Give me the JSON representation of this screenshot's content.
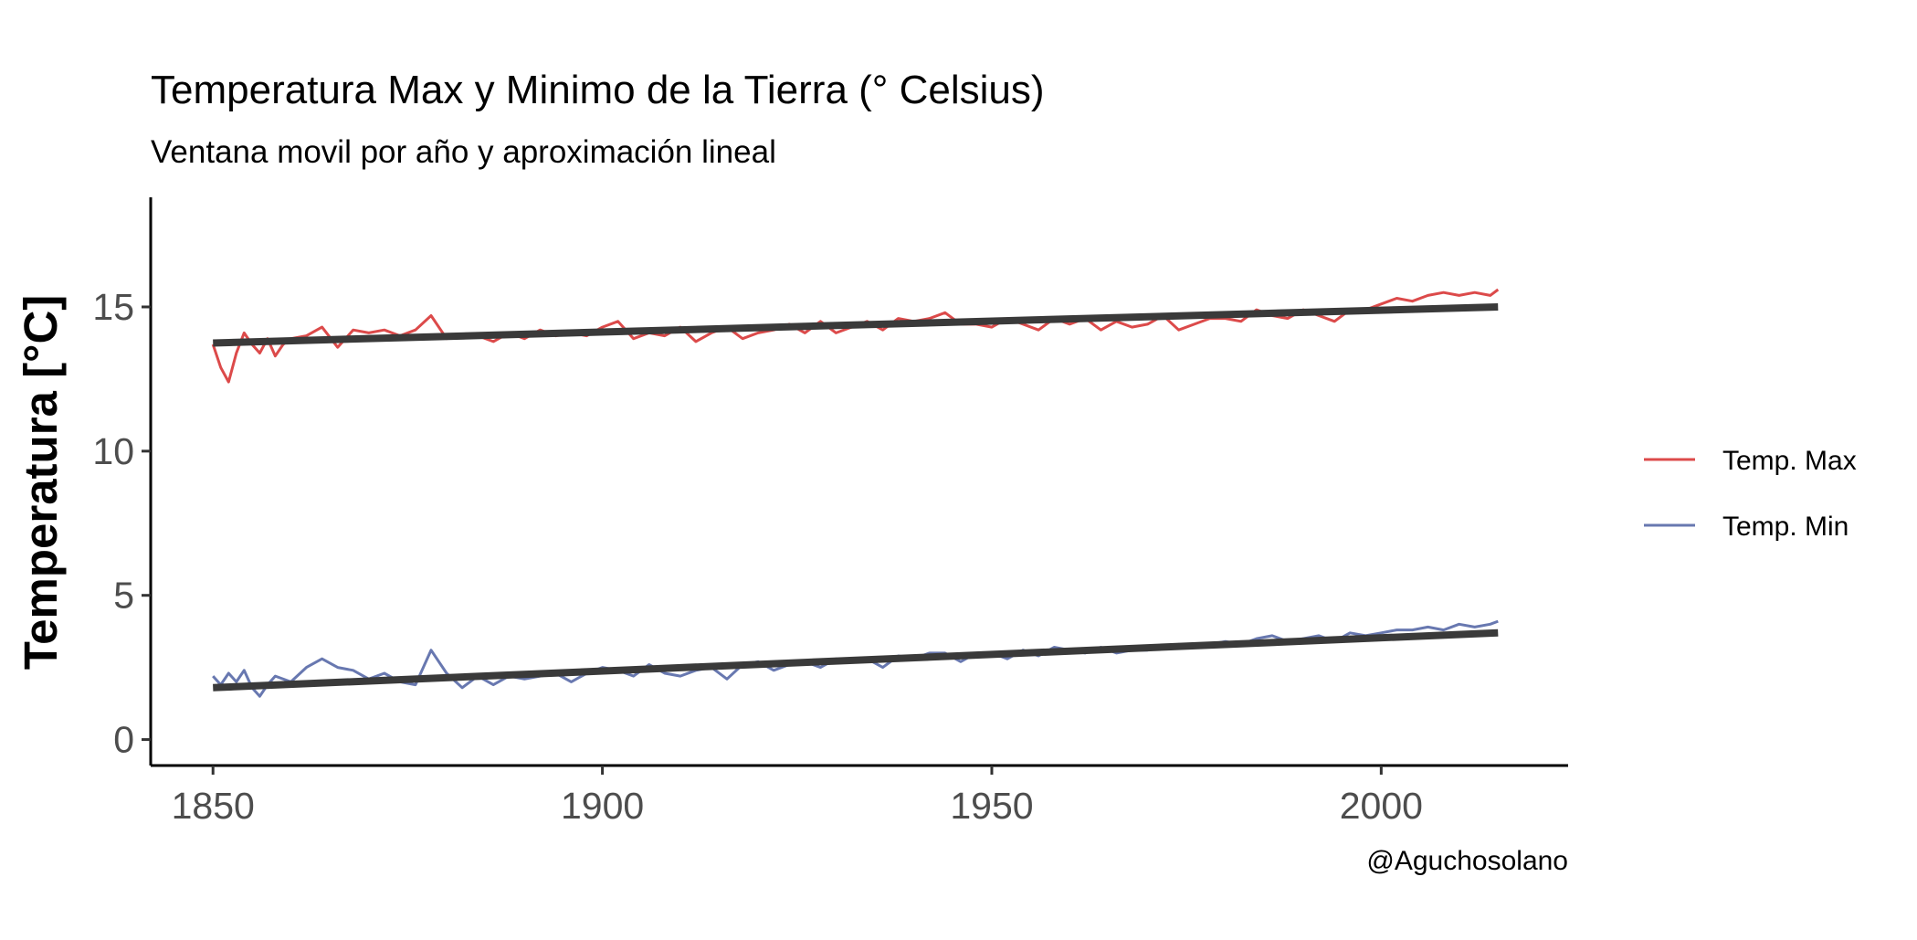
{
  "chart_data": {
    "type": "line",
    "title": "Temperatura Max y Minimo de la Tierra (° Celsius)",
    "subtitle": "Ventana movil por año y aproximación lineal",
    "xlabel": "",
    "ylabel": "Temperatura [°C]",
    "caption": "@Aguchosolano",
    "xlim": [
      1842,
      2024
    ],
    "ylim": [
      -0.9,
      18.8
    ],
    "xticks": [
      "1850",
      "1900",
      "1950",
      "2000"
    ],
    "yticks": [
      "0",
      "5",
      "10",
      "15"
    ],
    "grid": false,
    "legend_position": "right",
    "colors": {
      "max": "#dc4a4a",
      "min": "#6878b0",
      "trend": "#3a3a3a"
    },
    "series": [
      {
        "name": "Temp. Max",
        "color": "#dc4a4a",
        "x": [
          1850,
          1851,
          1852,
          1853,
          1854,
          1855,
          1856,
          1857,
          1858,
          1859,
          1860,
          1862,
          1864,
          1866,
          1868,
          1870,
          1872,
          1874,
          1876,
          1878,
          1880,
          1882,
          1884,
          1886,
          1888,
          1890,
          1892,
          1894,
          1896,
          1898,
          1900,
          1902,
          1904,
          1906,
          1908,
          1910,
          1912,
          1914,
          1916,
          1918,
          1920,
          1922,
          1924,
          1926,
          1928,
          1930,
          1932,
          1934,
          1936,
          1938,
          1940,
          1942,
          1944,
          1946,
          1948,
          1950,
          1952,
          1954,
          1956,
          1958,
          1960,
          1962,
          1964,
          1966,
          1968,
          1970,
          1972,
          1974,
          1976,
          1978,
          1980,
          1982,
          1984,
          1986,
          1988,
          1990,
          1992,
          1994,
          1996,
          1998,
          2000,
          2002,
          2004,
          2006,
          2008,
          2010,
          2012,
          2014,
          2015
        ],
        "values": [
          13.7,
          12.9,
          12.4,
          13.4,
          14.1,
          13.7,
          13.4,
          13.9,
          13.3,
          13.7,
          13.9,
          14.0,
          14.3,
          13.6,
          14.2,
          14.1,
          14.2,
          14.0,
          14.2,
          14.7,
          13.9,
          14.0,
          14.0,
          13.8,
          14.1,
          13.9,
          14.2,
          14.0,
          14.1,
          14.0,
          14.3,
          14.5,
          13.9,
          14.1,
          14.0,
          14.3,
          13.8,
          14.1,
          14.3,
          13.9,
          14.1,
          14.2,
          14.4,
          14.1,
          14.5,
          14.1,
          14.3,
          14.5,
          14.2,
          14.6,
          14.5,
          14.6,
          14.8,
          14.4,
          14.4,
          14.3,
          14.6,
          14.4,
          14.2,
          14.6,
          14.4,
          14.6,
          14.2,
          14.5,
          14.3,
          14.4,
          14.7,
          14.2,
          14.4,
          14.6,
          14.6,
          14.5,
          14.9,
          14.7,
          14.6,
          14.9,
          14.7,
          14.5,
          14.9,
          14.9,
          15.1,
          15.3,
          15.2,
          15.4,
          15.5,
          15.4,
          15.5,
          15.4,
          15.6
        ]
      },
      {
        "name": "Temp. Min",
        "color": "#6878b0",
        "x": [
          1850,
          1851,
          1852,
          1853,
          1854,
          1855,
          1856,
          1857,
          1858,
          1860,
          1862,
          1864,
          1866,
          1868,
          1870,
          1872,
          1874,
          1876,
          1878,
          1880,
          1882,
          1884,
          1886,
          1888,
          1890,
          1892,
          1894,
          1896,
          1898,
          1900,
          1902,
          1904,
          1906,
          1908,
          1910,
          1912,
          1914,
          1916,
          1918,
          1920,
          1922,
          1924,
          1926,
          1928,
          1930,
          1932,
          1934,
          1936,
          1938,
          1940,
          1942,
          1944,
          1946,
          1948,
          1950,
          1952,
          1954,
          1956,
          1958,
          1960,
          1962,
          1964,
          1966,
          1968,
          1970,
          1972,
          1974,
          1976,
          1978,
          1980,
          1982,
          1984,
          1986,
          1988,
          1990,
          1992,
          1994,
          1996,
          1998,
          2000,
          2002,
          2004,
          2006,
          2008,
          2010,
          2012,
          2014,
          2015
        ],
        "values": [
          2.2,
          1.9,
          2.3,
          2.0,
          2.4,
          1.8,
          1.5,
          1.9,
          2.2,
          2.0,
          2.5,
          2.8,
          2.5,
          2.4,
          2.1,
          2.3,
          2.0,
          1.9,
          3.1,
          2.3,
          1.8,
          2.2,
          1.9,
          2.2,
          2.1,
          2.2,
          2.3,
          2.0,
          2.3,
          2.5,
          2.4,
          2.2,
          2.6,
          2.3,
          2.2,
          2.4,
          2.5,
          2.1,
          2.6,
          2.7,
          2.4,
          2.6,
          2.7,
          2.5,
          2.8,
          2.7,
          2.8,
          2.5,
          2.9,
          2.8,
          3.0,
          3.0,
          2.7,
          3.0,
          3.0,
          2.8,
          3.1,
          2.9,
          3.2,
          3.1,
          3.0,
          3.2,
          3.0,
          3.1,
          3.1,
          3.2,
          3.3,
          3.2,
          3.3,
          3.4,
          3.3,
          3.5,
          3.6,
          3.4,
          3.5,
          3.6,
          3.4,
          3.7,
          3.6,
          3.7,
          3.8,
          3.8,
          3.9,
          3.8,
          4.0,
          3.9,
          4.0,
          4.1
        ]
      }
    ],
    "trend_lines": [
      {
        "x": [
          1850,
          2015
        ],
        "values": [
          13.75,
          15.0
        ]
      },
      {
        "x": [
          1850,
          2015
        ],
        "values": [
          1.8,
          3.7
        ]
      }
    ]
  }
}
